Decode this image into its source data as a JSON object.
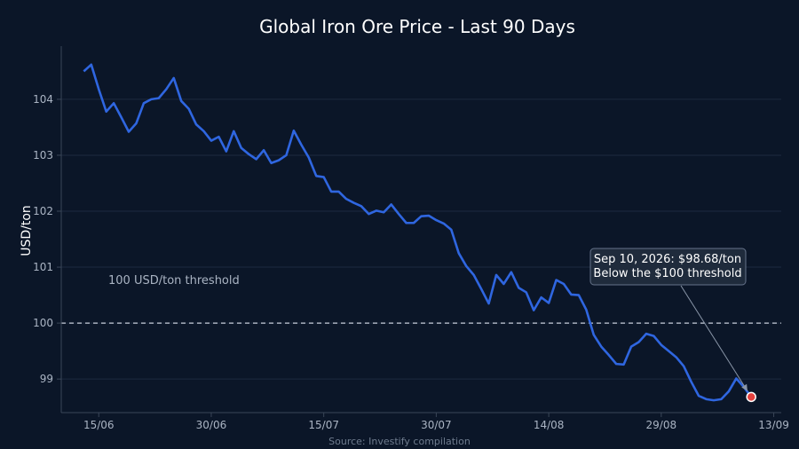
{
  "chart_data": {
    "type": "line",
    "title": "Global Iron Ore Price - Last 90 Days",
    "ylabel": "USD/ton",
    "xlabel": "",
    "source": "Source: Investify compilation",
    "ylim": [
      98.4,
      104.95
    ],
    "xlim": [
      "2026-06-10",
      "2026-09-14"
    ],
    "y_ticks": [
      99,
      100,
      101,
      102,
      103,
      104
    ],
    "x_ticks": [
      {
        "date": "2026-06-15",
        "label": "15/06"
      },
      {
        "date": "2026-06-30",
        "label": "30/06"
      },
      {
        "date": "2026-07-15",
        "label": "15/07"
      },
      {
        "date": "2026-07-30",
        "label": "30/07"
      },
      {
        "date": "2026-08-14",
        "label": "14/08"
      },
      {
        "date": "2026-08-29",
        "label": "29/08"
      },
      {
        "date": "2026-09-13",
        "label": "13/09"
      }
    ],
    "grid": "horizontal",
    "threshold": {
      "value": 100,
      "label": "100 USD/ton threshold"
    },
    "callout": {
      "lines": [
        "Sep 10, 2026: $98.68/ton",
        "Below the $100 threshold"
      ],
      "date": "2026-09-10",
      "value": 98.68
    },
    "colors": {
      "line": "#2f66e0",
      "marker": "#e5413e",
      "threshold": "#c8d0dc",
      "grid": "#1c2a3f",
      "axis": "#3a4658"
    },
    "series": [
      {
        "x": [
          "2026-06-13",
          "2026-06-14",
          "2026-06-15",
          "2026-06-16",
          "2026-06-17",
          "2026-06-18",
          "2026-06-19",
          "2026-06-20",
          "2026-06-21",
          "2026-06-22",
          "2026-06-23",
          "2026-06-24",
          "2026-06-25",
          "2026-06-26",
          "2026-06-27",
          "2026-06-28",
          "2026-06-29",
          "2026-06-30",
          "2026-07-01",
          "2026-07-02",
          "2026-07-03",
          "2026-07-04",
          "2026-07-05",
          "2026-07-06",
          "2026-07-07",
          "2026-07-08",
          "2026-07-09",
          "2026-07-10",
          "2026-07-11",
          "2026-07-12",
          "2026-07-13",
          "2026-07-14",
          "2026-07-15",
          "2026-07-16",
          "2026-07-17",
          "2026-07-18",
          "2026-07-19",
          "2026-07-20",
          "2026-07-21",
          "2026-07-22",
          "2026-07-23",
          "2026-07-24",
          "2026-07-25",
          "2026-07-26",
          "2026-07-27",
          "2026-07-28",
          "2026-07-29",
          "2026-07-30",
          "2026-07-31",
          "2026-08-01",
          "2026-08-02",
          "2026-08-03",
          "2026-08-04",
          "2026-08-05",
          "2026-08-06",
          "2026-08-07",
          "2026-08-08",
          "2026-08-09",
          "2026-08-10",
          "2026-08-11",
          "2026-08-12",
          "2026-08-13",
          "2026-08-14",
          "2026-08-15",
          "2026-08-16",
          "2026-08-17",
          "2026-08-18",
          "2026-08-19",
          "2026-08-20",
          "2026-08-21",
          "2026-08-22",
          "2026-08-23",
          "2026-08-24",
          "2026-08-25",
          "2026-08-26",
          "2026-08-27",
          "2026-08-28",
          "2026-08-29",
          "2026-08-30",
          "2026-08-31",
          "2026-09-01",
          "2026-09-02",
          "2026-09-03",
          "2026-09-04",
          "2026-09-05",
          "2026-09-06",
          "2026-09-07",
          "2026-09-08",
          "2026-09-09",
          "2026-09-10"
        ],
        "values": [
          104.5,
          104.62,
          104.18,
          103.78,
          103.93,
          103.68,
          103.42,
          103.57,
          103.93,
          104.0,
          104.02,
          104.18,
          104.38,
          103.97,
          103.83,
          103.55,
          103.43,
          103.26,
          103.33,
          103.07,
          103.43,
          103.13,
          103.02,
          102.93,
          103.09,
          102.86,
          102.91,
          103.0,
          103.44,
          103.19,
          102.96,
          102.63,
          102.61,
          102.35,
          102.35,
          102.22,
          102.15,
          102.09,
          101.95,
          102.01,
          101.98,
          102.12,
          101.95,
          101.79,
          101.79,
          101.91,
          101.92,
          101.84,
          101.78,
          101.67,
          101.25,
          101.02,
          100.86,
          100.61,
          100.35,
          100.86,
          100.7,
          100.91,
          100.63,
          100.55,
          100.23,
          100.46,
          100.36,
          100.77,
          100.7,
          100.51,
          100.5,
          100.24,
          99.79,
          99.58,
          99.43,
          99.27,
          99.26,
          99.58,
          99.66,
          99.81,
          99.77,
          99.61,
          99.5,
          99.39,
          99.23,
          98.95,
          98.7,
          98.64,
          98.62,
          98.64,
          98.78,
          99.01,
          98.86,
          98.68
        ]
      }
    ]
  }
}
